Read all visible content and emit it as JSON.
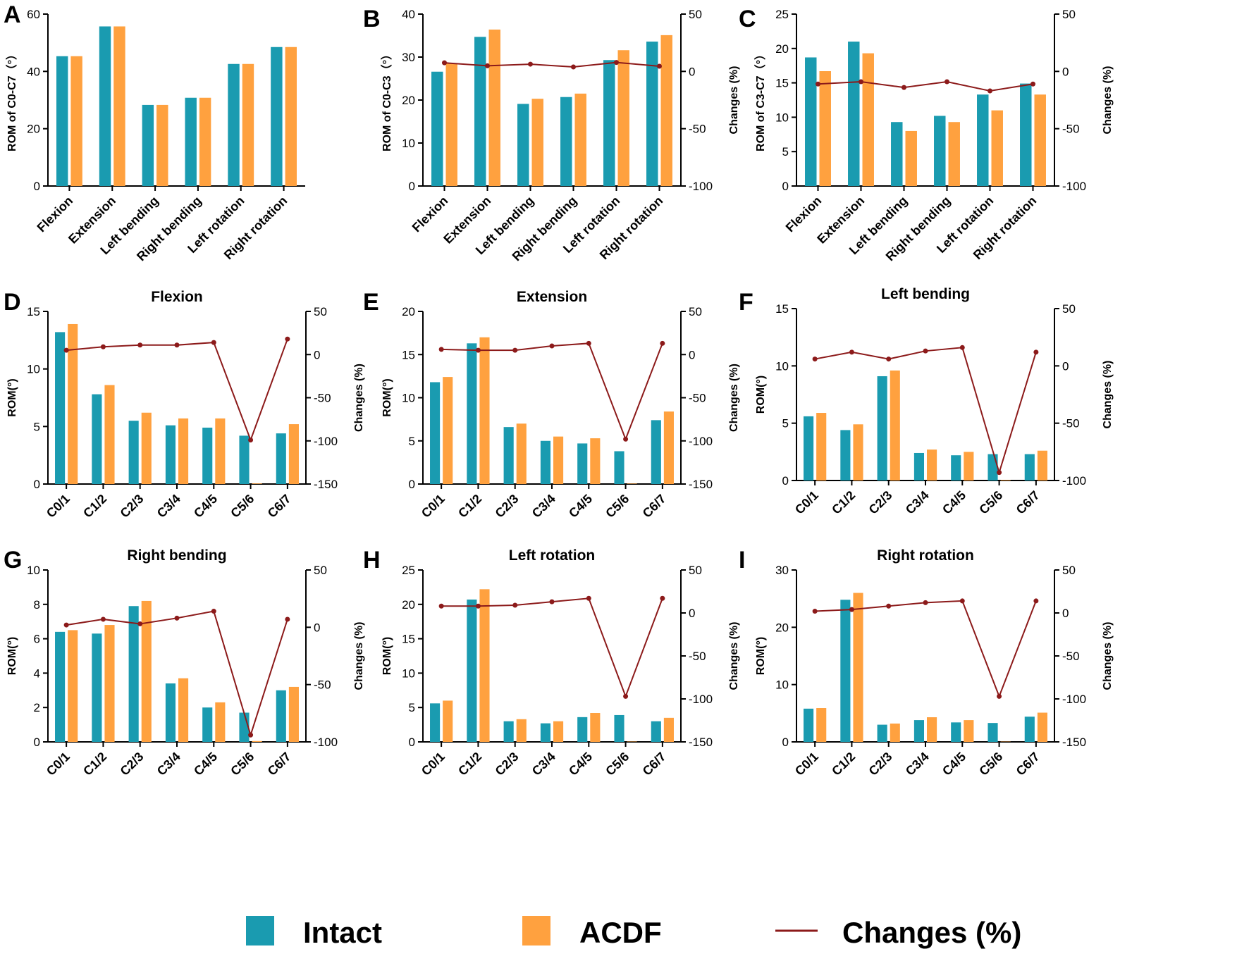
{
  "colors": {
    "intact": "#1a9bb0",
    "acdf": "#ffa13f",
    "changes": "#8c1a1a",
    "axis": "#000000"
  },
  "legend": {
    "intact": "Intact",
    "acdf": "ACDF",
    "changes": "Changes (%)"
  },
  "chart_data": [
    {
      "letter": "A",
      "type": "bar",
      "title": "",
      "ylabel": "ROM of C0-C7（°）",
      "ylim": [
        0,
        60
      ],
      "yticks": [
        "0",
        "20",
        "40",
        "60"
      ],
      "categories": [
        "Flexion",
        "Extension",
        "Left bending",
        "Right bending",
        "Left rotation",
        "Right rotation"
      ],
      "series": [
        {
          "name": "Intact",
          "values": [
            45.3,
            55.7,
            28.3,
            30.8,
            42.6,
            48.5
          ]
        },
        {
          "name": "ACDF",
          "values": [
            45.3,
            55.7,
            28.3,
            30.8,
            42.6,
            48.5
          ]
        }
      ]
    },
    {
      "letter": "B",
      "type": "bar+line",
      "title": "",
      "ylabel": "ROM of C0-C3（°）",
      "ylim": [
        0,
        40
      ],
      "yticks": [
        "0",
        "10",
        "20",
        "30",
        "40"
      ],
      "y2label": "Changes (%)",
      "y2lim": [
        -100,
        50
      ],
      "y2ticks": [
        "-100",
        "-50",
        "0",
        "50"
      ],
      "categories": [
        "Flexion",
        "Extension",
        "Left bending",
        "Right bending",
        "Left rotation",
        "Right rotation"
      ],
      "series": [
        {
          "name": "Intact",
          "values": [
            26.6,
            34.7,
            19.1,
            20.7,
            29.3,
            33.6
          ]
        },
        {
          "name": "ACDF",
          "values": [
            28.6,
            36.4,
            20.3,
            21.5,
            31.6,
            35.1
          ]
        },
        {
          "name": "Changes (%)",
          "values": [
            7.5,
            4.9,
            6.3,
            3.9,
            7.8,
            4.5
          ]
        }
      ]
    },
    {
      "letter": "C",
      "type": "bar+line",
      "title": "",
      "ylabel": "ROM of C3-C7（°）",
      "ylim": [
        0,
        25
      ],
      "yticks": [
        "0",
        "5",
        "10",
        "15",
        "20",
        "25"
      ],
      "y2label": "Changes (%)",
      "y2lim": [
        -100,
        50
      ],
      "y2ticks": [
        "-100",
        "-50",
        "0",
        "50"
      ],
      "categories": [
        "Flexion",
        "Extension",
        "Left bending",
        "Right bending",
        "Left rotation",
        "Right rotation"
      ],
      "series": [
        {
          "name": "Intact",
          "values": [
            18.7,
            21.0,
            9.3,
            10.2,
            13.3,
            14.9
          ]
        },
        {
          "name": "ACDF",
          "values": [
            16.7,
            19.3,
            8.0,
            9.3,
            11.0,
            13.3
          ]
        },
        {
          "name": "Changes (%)",
          "values": [
            -11,
            -9,
            -14,
            -9,
            -17,
            -11
          ]
        }
      ]
    },
    {
      "letter": "D",
      "type": "bar+line",
      "title": "Flexion",
      "ylabel": "ROM(°)",
      "ylim": [
        0,
        15
      ],
      "yticks": [
        "0",
        "5",
        "10",
        "15"
      ],
      "y2label": "Changes (%)",
      "y2lim": [
        -150,
        50
      ],
      "y2ticks": [
        "-150",
        "-100",
        "-50",
        "0",
        "50"
      ],
      "categories": [
        "C0/1",
        "C1/2",
        "C2/3",
        "C3/4",
        "C4/5",
        "C5/6",
        "C6/7"
      ],
      "series": [
        {
          "name": "Intact",
          "values": [
            13.2,
            7.8,
            5.5,
            5.1,
            4.9,
            4.2,
            4.4
          ]
        },
        {
          "name": "ACDF",
          "values": [
            13.9,
            8.6,
            6.2,
            5.7,
            5.7,
            0.05,
            5.2
          ]
        },
        {
          "name": "Changes (%)",
          "values": [
            5,
            9,
            11,
            11,
            14,
            -99,
            18
          ]
        }
      ]
    },
    {
      "letter": "E",
      "type": "bar+line",
      "title": "Extension",
      "ylabel": "ROM(°)",
      "ylim": [
        0,
        20
      ],
      "yticks": [
        "0",
        "5",
        "10",
        "15",
        "20"
      ],
      "y2label": "Changes (%)",
      "y2lim": [
        -150,
        50
      ],
      "y2ticks": [
        "-150",
        "-100",
        "-50",
        "0",
        "50"
      ],
      "categories": [
        "C0/1",
        "C1/2",
        "C2/3",
        "C3/4",
        "C4/5",
        "C5/6",
        "C6/7"
      ],
      "series": [
        {
          "name": "Intact",
          "values": [
            11.8,
            16.3,
            6.6,
            5.0,
            4.7,
            3.8,
            7.4
          ]
        },
        {
          "name": "ACDF",
          "values": [
            12.4,
            17.0,
            7.0,
            5.5,
            5.3,
            0.05,
            8.4
          ]
        },
        {
          "name": "Changes (%)",
          "values": [
            6,
            5,
            5,
            10,
            13,
            -98,
            13
          ]
        }
      ]
    },
    {
      "letter": "F",
      "type": "bar+line",
      "title": "Left bending",
      "ylabel": "ROM(°)",
      "ylim": [
        0,
        15
      ],
      "yticks": [
        "0",
        "5",
        "10",
        "15"
      ],
      "y2label": "Changes (%)",
      "y2lim": [
        -100,
        50
      ],
      "y2ticks": [
        "-100",
        "-50",
        "0",
        "50"
      ],
      "categories": [
        "C0/1",
        "C1/2",
        "C2/3",
        "C3/4",
        "C4/5",
        "C5/6",
        "C6/7"
      ],
      "series": [
        {
          "name": "Intact",
          "values": [
            5.6,
            4.4,
            9.1,
            2.4,
            2.2,
            2.3,
            2.3
          ]
        },
        {
          "name": "ACDF",
          "values": [
            5.9,
            4.9,
            9.6,
            2.7,
            2.5,
            0.05,
            2.6
          ]
        },
        {
          "name": "Changes (%)",
          "values": [
            6,
            12,
            6,
            13,
            16,
            -93,
            12
          ]
        }
      ]
    },
    {
      "letter": "G",
      "type": "bar+line",
      "title": "Right bending",
      "ylabel": "ROM(°)",
      "ylim": [
        0,
        10
      ],
      "yticks": [
        "0",
        "2",
        "4",
        "6",
        "8",
        "10"
      ],
      "y2label": "Changes (%)",
      "y2lim": [
        -100,
        50
      ],
      "y2ticks": [
        "-100",
        "-50",
        "0",
        "50"
      ],
      "categories": [
        "C0/1",
        "C1/2",
        "C2/3",
        "C3/4",
        "C4/5",
        "C5/6",
        "C6/7"
      ],
      "series": [
        {
          "name": "Intact",
          "values": [
            6.4,
            6.3,
            7.9,
            3.4,
            2.0,
            1.7,
            3.0
          ]
        },
        {
          "name": "ACDF",
          "values": [
            6.5,
            6.8,
            8.2,
            3.7,
            2.3,
            0.05,
            3.2
          ]
        },
        {
          "name": "Changes (%)",
          "values": [
            2,
            7,
            3,
            8,
            14,
            -94,
            7
          ]
        }
      ]
    },
    {
      "letter": "H",
      "type": "bar+line",
      "title": "Left rotation",
      "ylabel": "ROM(°)",
      "ylim": [
        0,
        25
      ],
      "yticks": [
        "0",
        "5",
        "10",
        "15",
        "20",
        "25"
      ],
      "y2label": "Changes (%)",
      "y2lim": [
        -150,
        50
      ],
      "y2ticks": [
        "-150",
        "-100",
        "-50",
        "0",
        "50"
      ],
      "categories": [
        "C0/1",
        "C1/2",
        "C2/3",
        "C3/4",
        "C4/5",
        "C5/6",
        "C6/7"
      ],
      "series": [
        {
          "name": "Intact",
          "values": [
            5.6,
            20.7,
            3.0,
            2.7,
            3.6,
            3.9,
            3.0
          ]
        },
        {
          "name": "ACDF",
          "values": [
            6.0,
            22.2,
            3.3,
            3.0,
            4.2,
            0.05,
            3.5
          ]
        },
        {
          "name": "Changes (%)",
          "values": [
            8,
            8,
            9,
            13,
            17,
            -97,
            17
          ]
        }
      ]
    },
    {
      "letter": "I",
      "type": "bar+line",
      "title": "Right rotation",
      "ylabel": "ROM(°)",
      "ylim": [
        0,
        30
      ],
      "yticks": [
        "0",
        "10",
        "20",
        "30"
      ],
      "y2label": "Changes (%)",
      "y2lim": [
        -150,
        50
      ],
      "y2ticks": [
        "-150",
        "-100",
        "-50",
        "0",
        "50"
      ],
      "categories": [
        "C0/1",
        "C1/2",
        "C2/3",
        "C3/4",
        "C4/5",
        "C5/6",
        "C6/7"
      ],
      "series": [
        {
          "name": "Intact",
          "values": [
            5.8,
            24.8,
            3.0,
            3.8,
            3.4,
            3.3,
            4.4
          ]
        },
        {
          "name": "ACDF",
          "values": [
            5.9,
            26.0,
            3.2,
            4.3,
            3.8,
            0.05,
            5.1
          ]
        },
        {
          "name": "Changes (%)",
          "values": [
            2,
            4,
            8,
            12,
            14,
            -97,
            14
          ]
        }
      ]
    }
  ]
}
